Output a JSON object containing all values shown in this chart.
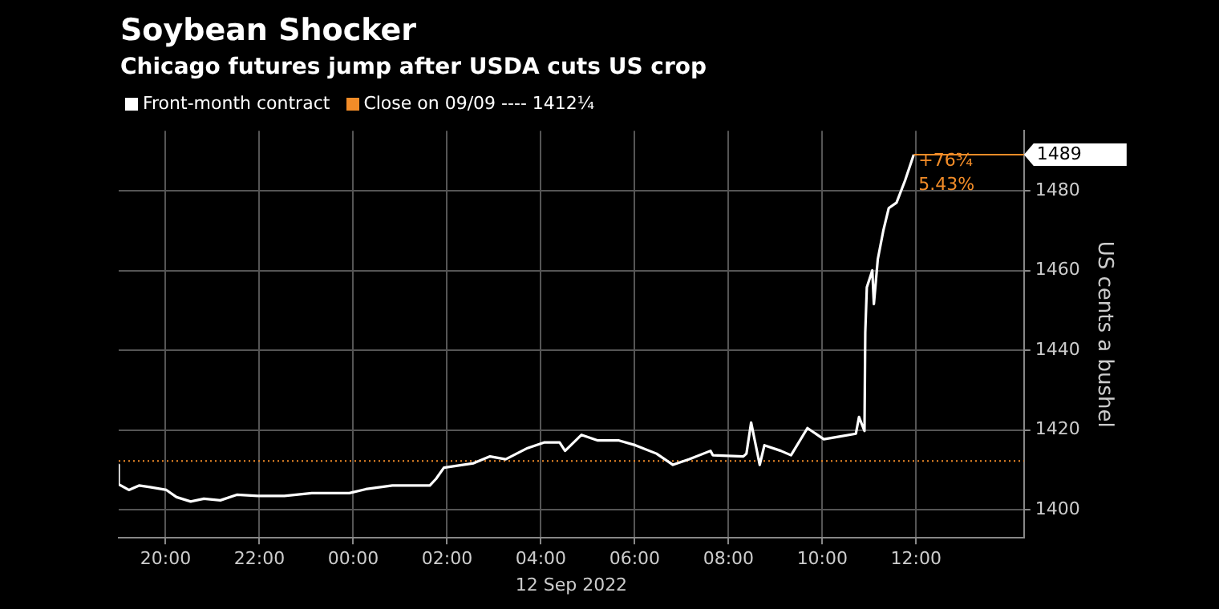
{
  "chart_data": {
    "type": "line",
    "title": "Soybean Shocker",
    "subtitle": "Chicago futures jump after USDA cuts US crop",
    "xlabel": "12 Sep 2022",
    "ylabel": "US cents a bushel",
    "xlim": [
      "2022-09-11T19:00",
      "2022-09-12T14:18"
    ],
    "ylim": [
      1393,
      1495
    ],
    "xticks": [
      {
        "value": "2022-09-11T20:00",
        "label": "20:00"
      },
      {
        "value": "2022-09-11T22:00",
        "label": "22:00"
      },
      {
        "value": "2022-09-12T00:00",
        "label": "00:00"
      },
      {
        "value": "2022-09-12T02:00",
        "label": "02:00"
      },
      {
        "value": "2022-09-12T04:00",
        "label": "04:00"
      },
      {
        "value": "2022-09-12T06:00",
        "label": "06:00"
      },
      {
        "value": "2022-09-12T08:00",
        "label": "08:00"
      },
      {
        "value": "2022-09-12T10:00",
        "label": "10:00"
      },
      {
        "value": "2022-09-12T12:00",
        "label": "12:00"
      }
    ],
    "yticks": [
      1400,
      1420,
      1440,
      1460,
      1480
    ],
    "grid": true,
    "legend": "top left",
    "series": [
      {
        "name": "Front-month contract",
        "color": "#ffffff",
        "x": [
          "2022-09-11T19:00",
          "2022-09-11T19:00",
          "2022-09-11T19:13",
          "2022-09-11T19:26",
          "2022-09-11T19:40",
          "2022-09-11T20:01",
          "2022-09-11T20:14",
          "2022-09-11T20:32",
          "2022-09-11T20:49",
          "2022-09-11T21:10",
          "2022-09-11T21:31",
          "2022-09-11T21:58",
          "2022-09-11T22:32",
          "2022-09-11T23:07",
          "2022-09-11T23:55",
          "2022-09-12T00:16",
          "2022-09-12T00:50",
          "2022-09-12T01:38",
          "2022-09-12T01:46",
          "2022-09-12T01:56",
          "2022-09-12T02:34",
          "2022-09-12T02:55",
          "2022-09-12T03:15",
          "2022-09-12T03:43",
          "2022-09-12T04:04",
          "2022-09-12T04:24",
          "2022-09-12T04:31",
          "2022-09-12T04:52",
          "2022-09-12T05:13",
          "2022-09-12T05:40",
          "2022-09-12T06:01",
          "2022-09-12T06:28",
          "2022-09-12T06:49",
          "2022-09-12T07:10",
          "2022-09-12T07:37",
          "2022-09-12T07:40",
          "2022-09-12T08:19",
          "2022-09-12T08:23",
          "2022-09-12T08:29",
          "2022-09-12T08:40",
          "2022-09-12T08:46",
          "2022-09-12T09:07",
          "2022-09-12T09:20",
          "2022-09-12T09:41",
          "2022-09-12T10:02",
          "2022-09-12T10:23",
          "2022-09-12T10:43",
          "2022-09-12T10:47",
          "2022-09-12T10:54",
          "2022-09-12T10:55",
          "2022-09-12T10:57",
          "2022-09-12T11:04",
          "2022-09-12T11:06",
          "2022-09-12T11:11",
          "2022-09-12T11:18",
          "2022-09-12T11:25",
          "2022-09-12T11:35",
          "2022-09-12T11:46",
          "2022-09-12T11:57"
        ],
        "values": [
          1411.3,
          1406.4,
          1405.0,
          1406.1,
          1405.7,
          1405.0,
          1403.2,
          1402.1,
          1402.8,
          1402.4,
          1403.8,
          1403.5,
          1403.5,
          1404.2,
          1404.2,
          1405.2,
          1406.1,
          1406.1,
          1407.8,
          1410.6,
          1411.7,
          1413.4,
          1412.7,
          1415.5,
          1416.9,
          1416.9,
          1414.8,
          1418.8,
          1417.4,
          1417.4,
          1416.2,
          1414.1,
          1411.3,
          1412.7,
          1414.8,
          1413.7,
          1413.4,
          1414.1,
          1421.9,
          1411.3,
          1416.2,
          1414.8,
          1413.7,
          1420.5,
          1417.7,
          1418.4,
          1419.1,
          1423.3,
          1419.8,
          1444.5,
          1455.8,
          1460.0,
          1451.6,
          1462.8,
          1469.9,
          1475.6,
          1477.0,
          1482.6,
          1489.0
        ]
      }
    ],
    "ref_lines": [
      {
        "axis": "y",
        "value": 1412.25,
        "label": "Close on 09/09 ---- 1412¼",
        "color": "#f28c28",
        "line_style": "dotted"
      }
    ],
    "annotations": [
      {
        "text": "1489",
        "x": "2022-09-12T11:57",
        "y": 1489
      },
      {
        "text": "+76¾",
        "x": "2022-09-12T11:57",
        "y": 1489
      },
      {
        "text": "5.43%",
        "x": "2022-09-12T11:57",
        "y": 1483
      }
    ]
  }
}
